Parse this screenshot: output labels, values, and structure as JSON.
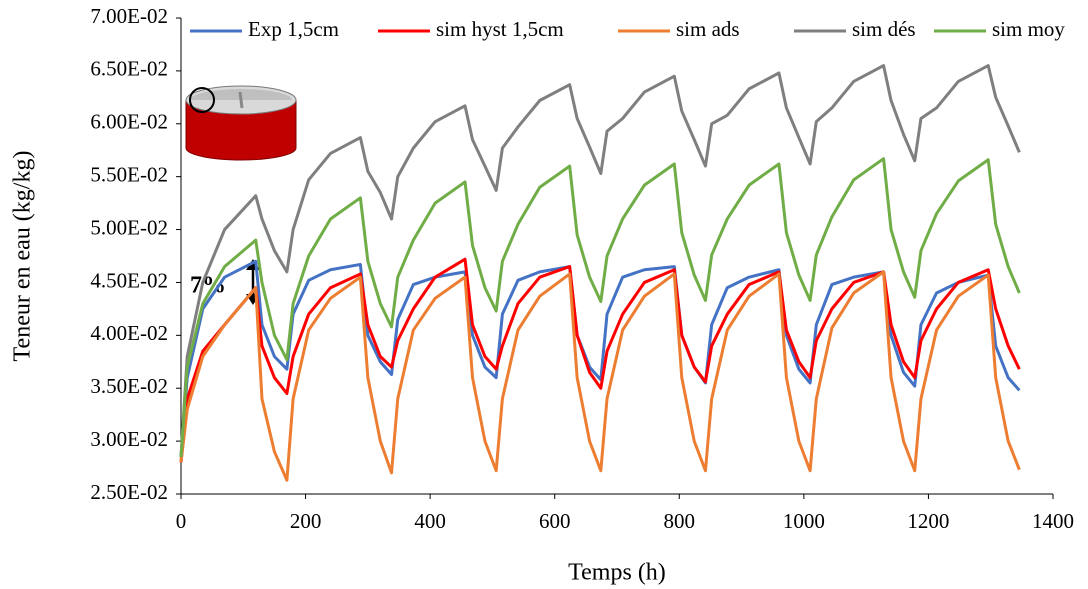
{
  "chart_data": {
    "type": "line",
    "xlabel": "Temps (h)",
    "ylabel": "Teneur en eau (kg/kg)",
    "annotation": "7%",
    "legend": "top",
    "xlim": [
      0,
      1400
    ],
    "xticks": [
      0,
      200,
      400,
      600,
      800,
      1000,
      1200,
      1400
    ],
    "ylim": [
      0.025,
      0.07
    ],
    "yticks": [
      {
        "value": 0.025,
        "label": "2.50E-02"
      },
      {
        "value": 0.03,
        "label": "3.00E-02"
      },
      {
        "value": 0.035,
        "label": "3.50E-02"
      },
      {
        "value": 0.04,
        "label": "4.00E-02"
      },
      {
        "value": 0.045,
        "label": "4.50E-02"
      },
      {
        "value": 0.05,
        "label": "5.00E-02"
      },
      {
        "value": 0.055,
        "label": "5.50E-02"
      },
      {
        "value": 0.06,
        "label": "6.00E-02"
      },
      {
        "value": 0.065,
        "label": "6.50E-02"
      },
      {
        "value": 0.07,
        "label": "7.00E-02"
      }
    ],
    "x": [
      0,
      10,
      35,
      70,
      120,
      130,
      150,
      170,
      180,
      205,
      240,
      288,
      300,
      320,
      338,
      348,
      373,
      408,
      456,
      468,
      488,
      506,
      516,
      541,
      576,
      624,
      636,
      656,
      674,
      684,
      709,
      744,
      792,
      804,
      824,
      842,
      852,
      877,
      912,
      960,
      972,
      992,
      1010,
      1020,
      1045,
      1080,
      1128,
      1140,
      1160,
      1178,
      1188,
      1213,
      1248,
      1296,
      1308,
      1328,
      1346
    ],
    "series": [
      {
        "name": "Exp 1,5cm",
        "color": "#4472c4",
        "values": [
          0.0285,
          0.036,
          0.0425,
          0.0455,
          0.047,
          0.041,
          0.038,
          0.0368,
          0.042,
          0.0452,
          0.0462,
          0.0467,
          0.04,
          0.0375,
          0.0363,
          0.0415,
          0.0448,
          0.0455,
          0.046,
          0.04,
          0.037,
          0.036,
          0.042,
          0.0452,
          0.046,
          0.0465,
          0.04,
          0.037,
          0.0358,
          0.042,
          0.0455,
          0.0462,
          0.0465,
          0.04,
          0.037,
          0.0355,
          0.041,
          0.0445,
          0.0455,
          0.0462,
          0.04,
          0.0368,
          0.0355,
          0.041,
          0.0448,
          0.0455,
          0.046,
          0.04,
          0.0365,
          0.0352,
          0.041,
          0.044,
          0.045,
          0.0457,
          0.039,
          0.036,
          0.0348
        ]
      },
      {
        "name": "sim hyst 1,5cm",
        "color": "#ff0000",
        "values": [
          0.028,
          0.034,
          0.0385,
          0.041,
          0.0445,
          0.039,
          0.036,
          0.0345,
          0.038,
          0.042,
          0.0445,
          0.0458,
          0.041,
          0.038,
          0.037,
          0.0395,
          0.0425,
          0.0455,
          0.0472,
          0.041,
          0.038,
          0.0368,
          0.039,
          0.043,
          0.0455,
          0.0465,
          0.04,
          0.0365,
          0.035,
          0.0385,
          0.042,
          0.045,
          0.0462,
          0.04,
          0.037,
          0.0356,
          0.039,
          0.042,
          0.0448,
          0.046,
          0.0405,
          0.0375,
          0.036,
          0.0395,
          0.0425,
          0.045,
          0.046,
          0.041,
          0.0375,
          0.036,
          0.0395,
          0.0425,
          0.045,
          0.0462,
          0.0425,
          0.039,
          0.0368
        ]
      },
      {
        "name": "sim ads",
        "color": "#ed7d31",
        "values": [
          0.028,
          0.033,
          0.038,
          0.041,
          0.0445,
          0.034,
          0.029,
          0.0263,
          0.034,
          0.0405,
          0.0435,
          0.0455,
          0.036,
          0.03,
          0.027,
          0.034,
          0.0405,
          0.0435,
          0.0455,
          0.036,
          0.03,
          0.0272,
          0.034,
          0.0405,
          0.0437,
          0.0458,
          0.036,
          0.03,
          0.0272,
          0.034,
          0.0405,
          0.0437,
          0.0458,
          0.036,
          0.03,
          0.0272,
          0.034,
          0.0405,
          0.0437,
          0.0458,
          0.036,
          0.03,
          0.0272,
          0.034,
          0.0407,
          0.044,
          0.046,
          0.036,
          0.03,
          0.0272,
          0.034,
          0.0405,
          0.0437,
          0.0457,
          0.036,
          0.03,
          0.0273
        ]
      },
      {
        "name": "sim dés",
        "color": "#7f7f7f",
        "values": [
          0.0285,
          0.038,
          0.045,
          0.05,
          0.0532,
          0.051,
          0.048,
          0.046,
          0.05,
          0.0547,
          0.0572,
          0.0587,
          0.0555,
          0.0535,
          0.051,
          0.055,
          0.0577,
          0.0602,
          0.0617,
          0.0585,
          0.056,
          0.0537,
          0.0577,
          0.0597,
          0.0622,
          0.0637,
          0.0605,
          0.0578,
          0.0553,
          0.0593,
          0.0605,
          0.063,
          0.0645,
          0.0612,
          0.0585,
          0.056,
          0.06,
          0.0608,
          0.0633,
          0.0648,
          0.0615,
          0.0587,
          0.0562,
          0.0602,
          0.0615,
          0.064,
          0.0655,
          0.0622,
          0.059,
          0.0565,
          0.0605,
          0.0615,
          0.064,
          0.0655,
          0.0625,
          0.0598,
          0.0573
        ]
      },
      {
        "name": "sim moy",
        "color": "#70ad47",
        "values": [
          0.0285,
          0.037,
          0.043,
          0.0465,
          0.049,
          0.045,
          0.04,
          0.0377,
          0.043,
          0.0475,
          0.051,
          0.053,
          0.047,
          0.043,
          0.0408,
          0.0455,
          0.049,
          0.0525,
          0.0545,
          0.0485,
          0.0445,
          0.0423,
          0.047,
          0.0505,
          0.054,
          0.056,
          0.0495,
          0.0455,
          0.0432,
          0.0475,
          0.051,
          0.0542,
          0.0562,
          0.0497,
          0.0457,
          0.0433,
          0.0476,
          0.051,
          0.0542,
          0.0562,
          0.0497,
          0.0457,
          0.0433,
          0.0476,
          0.0512,
          0.0547,
          0.0567,
          0.05,
          0.046,
          0.0436,
          0.048,
          0.0515,
          0.0546,
          0.0566,
          0.0505,
          0.0465,
          0.044
        ]
      }
    ]
  }
}
